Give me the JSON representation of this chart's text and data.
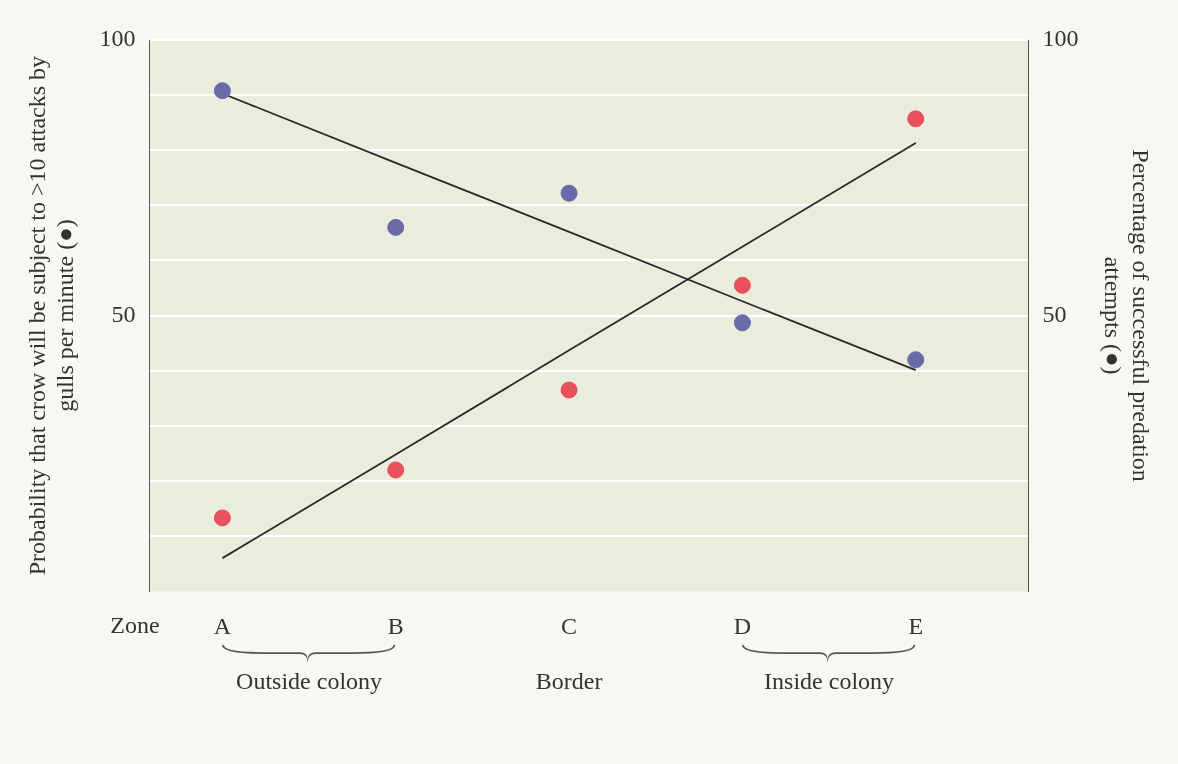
{
  "chart_data": {
    "type": "scatter",
    "ylabel": "Probability that crow will be subject to >10 attacks by gulls per minute (●)",
    "y2label": "Percentage of successful predation attempts (●)",
    "xlabel": "Zone",
    "categories": [
      "A",
      "B",
      "C",
      "D",
      "E"
    ],
    "ylim": [
      0,
      100
    ],
    "yticks": [
      {
        "value": 10,
        "label": null
      },
      {
        "value": 20,
        "label": null
      },
      {
        "value": 30,
        "label": null
      },
      {
        "value": 40,
        "label": null
      },
      50,
      {
        "value": 60,
        "label": null
      },
      {
        "value": 70,
        "label": null
      },
      {
        "value": 80,
        "label": null
      },
      {
        "value": 90,
        "label": null
      },
      100
    ],
    "y2lim": [
      0,
      100
    ],
    "y2ticks": [
      50,
      100
    ],
    "grid": "y",
    "marker": "circle",
    "series": [
      {
        "color": "#e8505b",
        "values": [
          13.3,
          22,
          36.5,
          55.5,
          85.7
        ]
      },
      {
        "color": "#6a6aa8",
        "values": [
          90.8,
          66,
          72.2,
          48.7,
          42
        ]
      },
      {
        "type": "line",
        "color": "#2a2a2a",
        "values": [
          6.0,
          24.8,
          43.7,
          62.5,
          81.3
        ],
        "marker": "none"
      },
      {
        "type": "line",
        "color": "#2a2a2a",
        "values": [
          90.3,
          77.7,
          65.2,
          52.6,
          40.1
        ],
        "marker": "none"
      }
    ],
    "annotations": [
      "Outside colony",
      "Border",
      "Inside colony"
    ]
  }
}
